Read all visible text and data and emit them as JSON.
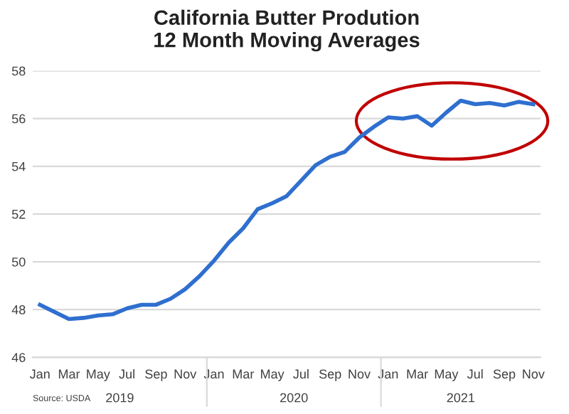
{
  "chart_data": {
    "type": "line",
    "title": "California Butter Prodution\n12 Month Moving Averages",
    "categories": [
      "Jan",
      null,
      "Mar",
      null,
      "May",
      null,
      "Jul",
      null,
      "Sep",
      null,
      "Nov",
      null,
      "Jan",
      null,
      "Mar",
      null,
      "May",
      null,
      "Jul",
      null,
      "Sep",
      null,
      "Nov",
      null,
      "Jan",
      null,
      "Mar",
      null,
      "May",
      null,
      "Jul",
      null,
      "Sep",
      null,
      "Nov"
    ],
    "series": [
      {
        "color": "#2f6fcf",
        "values": [
          48.2,
          47.9,
          47.6,
          47.65,
          47.75,
          47.8,
          48.05,
          48.2,
          48.2,
          48.45,
          48.85,
          49.4,
          50.05,
          50.8,
          51.4,
          52.2,
          52.45,
          52.75,
          53.4,
          54.05,
          54.4,
          54.6,
          55.2,
          55.65,
          56.05,
          56.0,
          56.1,
          55.7,
          56.25,
          56.75,
          56.6,
          56.65,
          56.55,
          56.7,
          56.6
        ]
      }
    ],
    "ylim": [
      46,
      58
    ],
    "yticks": [
      46,
      48,
      50,
      52,
      54,
      56,
      58
    ],
    "grid": "y",
    "legend": false,
    "marker": "none",
    "line_style": "solid",
    "annotations": [
      "Source: USDA",
      "2019",
      "2020",
      "2021"
    ]
  }
}
